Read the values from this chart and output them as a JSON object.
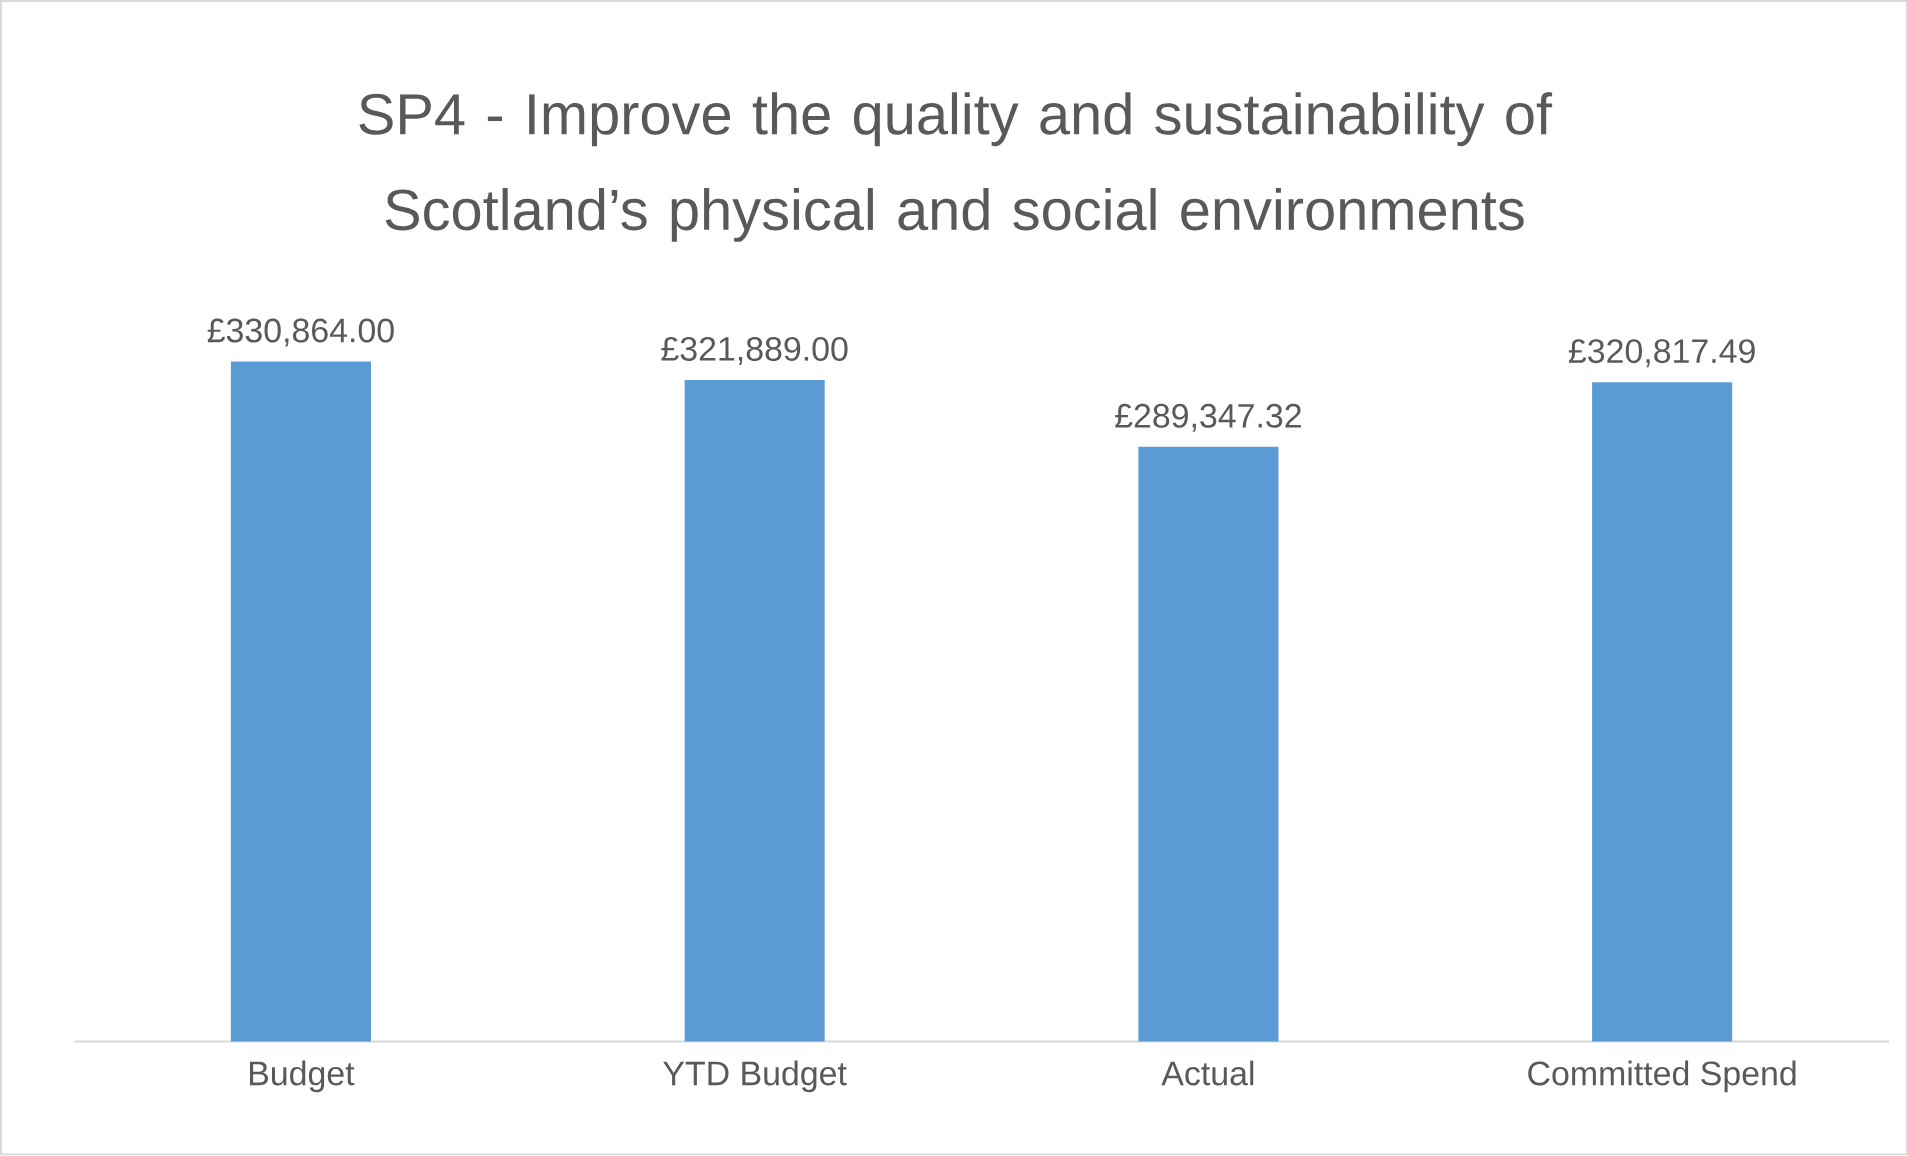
{
  "chart_data": {
    "type": "bar",
    "title": "SP4 - Improve the quality and sustainability of Scotland’s physical and social environments",
    "categories": [
      "Budget",
      "YTD Budget",
      "Actual",
      "Committed Spend"
    ],
    "values": [
      330864.0,
      321889.0,
      289347.32,
      320817.49
    ],
    "value_labels": [
      "£330,864.00",
      "£321,889.00",
      "£289,347.32",
      "£320,817.49"
    ],
    "color": "#5b9bd5",
    "tick_labels": "x"
  }
}
